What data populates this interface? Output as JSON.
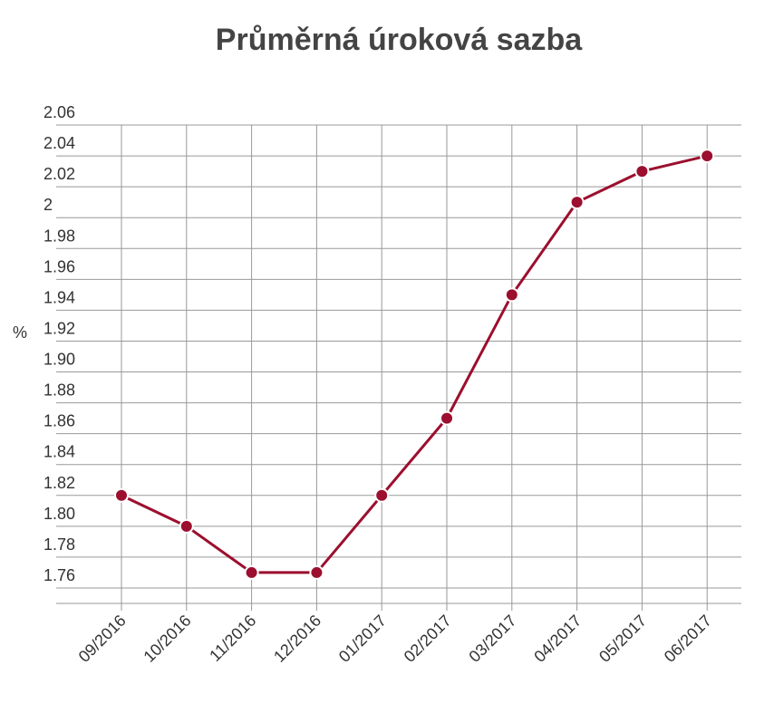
{
  "chart_data": {
    "type": "line",
    "title": "Průměrná úroková sazba",
    "y_label": "%",
    "categories": [
      "09/2016",
      "10/2016",
      "11/2016",
      "12/2016",
      "01/2017",
      "02/2017",
      "03/2017",
      "04/2017",
      "05/2017",
      "06/2017"
    ],
    "series": [
      {
        "name": "Průměrná úroková sazba",
        "color": "#9c0f2e",
        "values": [
          1.82,
          1.8,
          1.77,
          1.77,
          1.82,
          1.87,
          1.95,
          2.01,
          2.03,
          2.04
        ]
      }
    ],
    "ylim": [
      1.75,
      2.06
    ],
    "yticks": [
      1.76,
      1.78,
      {
        "value": 1.8,
        "label": "1.80"
      },
      1.82,
      1.84,
      1.86,
      1.88,
      {
        "value": 1.9,
        "label": "1.90"
      },
      1.92,
      1.94,
      1.96,
      1.98,
      2,
      2.02,
      2.04,
      2.06
    ],
    "grid": true
  }
}
